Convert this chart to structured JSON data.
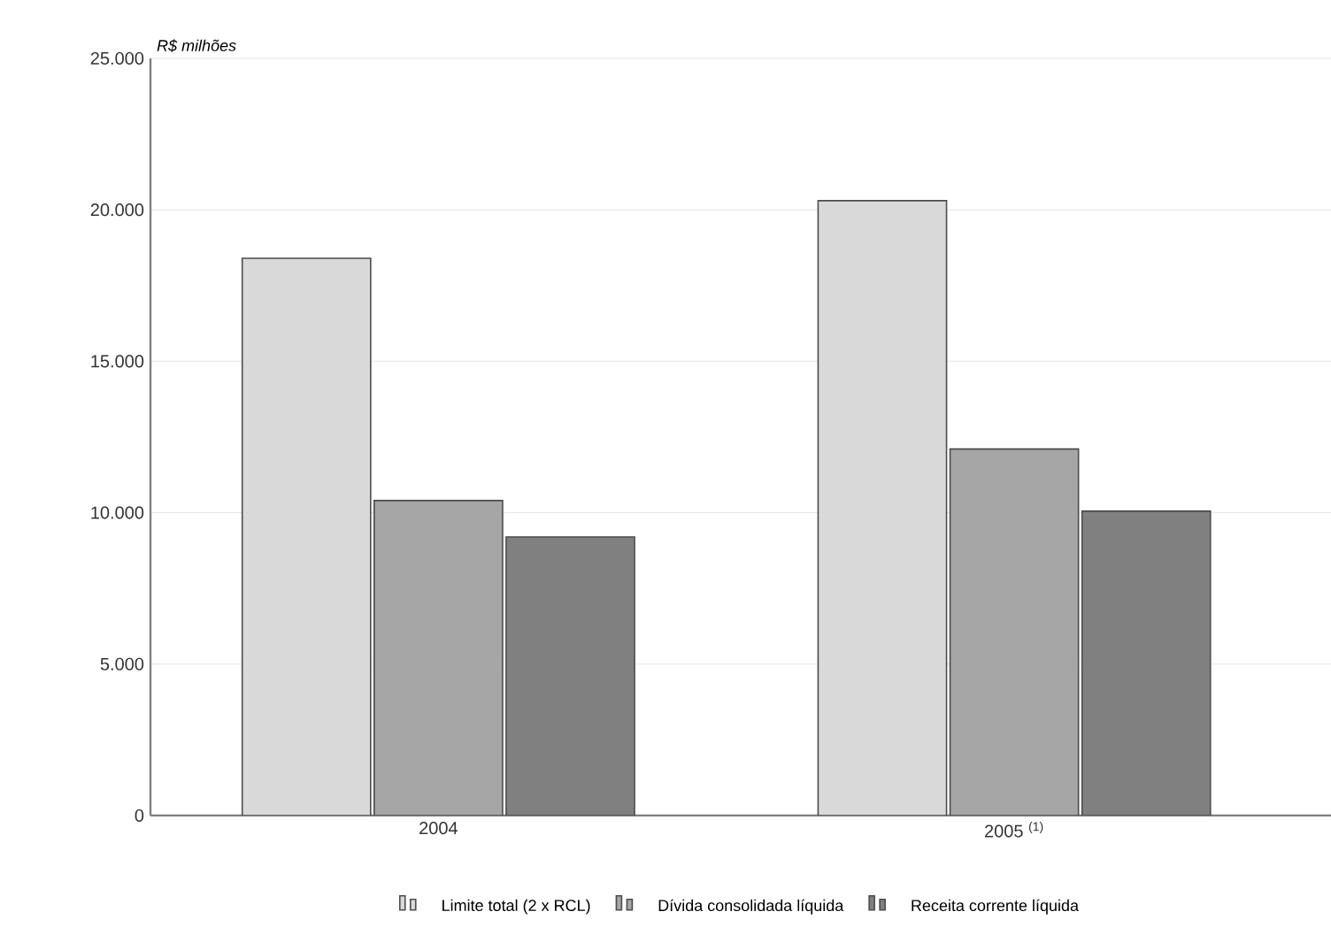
{
  "chart_data": {
    "type": "bar",
    "ylabel": "R$ milhões",
    "categories": [
      "2004",
      "2005 $^{(1)}$"
    ],
    "series": [
      {
        "name": "Limite total (2 x RCL)",
        "color": "#d9d9d9",
        "values": [
          18400,
          20300
        ]
      },
      {
        "name": "Dívida consolidada líquida",
        "color": "#a6a6a6",
        "values": [
          10400,
          12100
        ]
      },
      {
        "name": "Receita corrente líquida",
        "color": "#808080",
        "values": [
          9200,
          10050
        ]
      }
    ],
    "ylim": [
      0,
      25000
    ],
    "yticks": [
      {
        "value": 0,
        "label": "0"
      },
      {
        "value": 5000,
        "label": "5.000"
      },
      {
        "value": 10000,
        "label": "10.000"
      },
      {
        "value": 15000,
        "label": "15.000"
      },
      {
        "value": 20000,
        "label": "20.000"
      },
      {
        "value": 25000,
        "label": "25.000"
      }
    ],
    "grid": "y",
    "legend": "bottom"
  }
}
